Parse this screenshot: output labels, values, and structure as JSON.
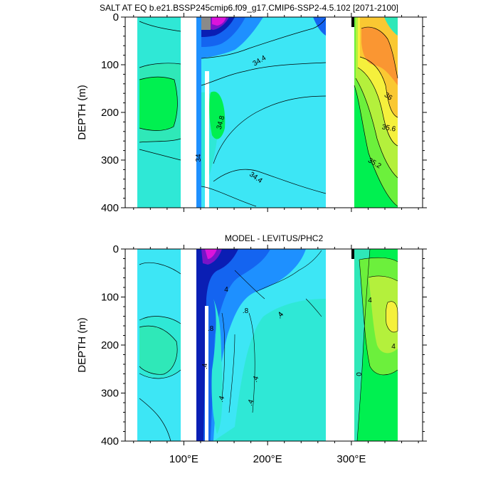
{
  "chart_data": [
    {
      "type": "contour",
      "title": "SALT AT EQ b.e21.BSSP245cmip6.f09_g17.CMIP6-SSP2-4.5.102 [2071-2100]",
      "ylabel": "DEPTH (m)",
      "xlabel": "",
      "ylim": [
        400,
        0
      ],
      "xlim": [
        30,
        385
      ],
      "yticks": [
        "0",
        "100",
        "200",
        "300",
        "400"
      ],
      "contour_labels": [
        "34.4",
        "36",
        "35.6",
        "34.8",
        "34",
        "35.2",
        "34.4"
      ]
    },
    {
      "type": "contour",
      "title": "MODEL - LEVITUS/PHC2",
      "ylabel": "DEPTH (m)",
      "xlabel": "",
      "ylim": [
        400,
        0
      ],
      "xlim": [
        30,
        385
      ],
      "yticks": [
        "0",
        "100",
        "200",
        "300",
        "400"
      ],
      "xticks": [
        "100°E",
        "200°E",
        "300°E"
      ],
      "contour_labels": [
        "4",
        ".8",
        ".4",
        ".8",
        ".4",
        ".4",
        ".4",
        ".4",
        ".4",
        "4",
        "4",
        "0"
      ]
    }
  ],
  "colors": {
    "cyan": "#3de6f5",
    "aquamarine": "#2fe8d6",
    "mint": "#2fe8b8",
    "green": "#00f050",
    "lime": "#6cf03c",
    "yellowgreen": "#b4f03c",
    "yellow": "#f5f03c",
    "gold": "#fac832",
    "orange": "#fa9632",
    "blue": "#1e90ff",
    "royal": "#1464f0",
    "navy": "#0a1eb4",
    "purple": "#7814c8",
    "magenta": "#dc14dc",
    "gray": "#8a8a8a"
  }
}
